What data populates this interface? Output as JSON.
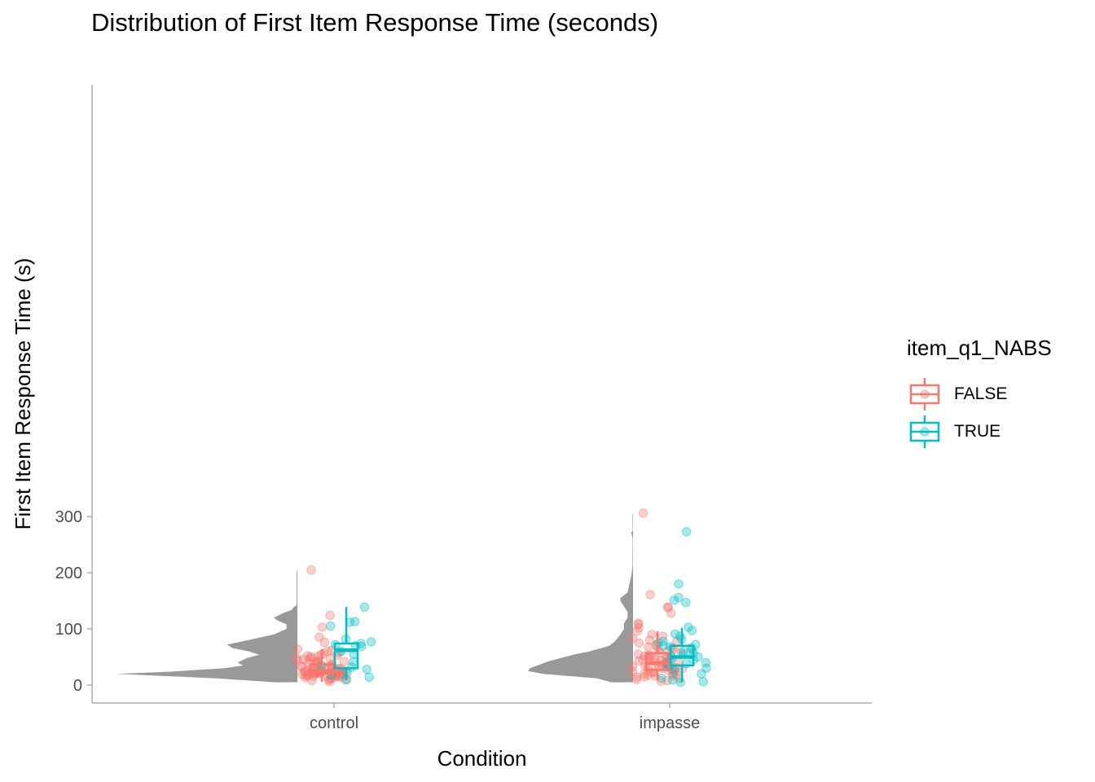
{
  "chart_data": {
    "type": "raincloud",
    "title": "Distribution of First Item Response Time (seconds)",
    "xlabel": "Condition",
    "ylabel": "First Item Response Time (s)",
    "categories": [
      "control",
      "impasse"
    ],
    "ylim": [
      -10,
      322
    ],
    "yticks": [
      0,
      100,
      200,
      300
    ],
    "grid": false,
    "legend": {
      "title": "item_q1_NABS",
      "position": "right",
      "entries": [
        {
          "label": "FALSE",
          "color": "#F8766D"
        },
        {
          "label": "TRUE",
          "color": "#00BFC4"
        }
      ]
    },
    "density_color": "#999999",
    "boxplots": [
      {
        "category": "control",
        "group": "FALSE",
        "whisker_low": 6,
        "q1": 20,
        "median": 25,
        "q3": 37,
        "whisker_high": 64
      },
      {
        "category": "control",
        "group": "TRUE",
        "whisker_low": 9,
        "q1": 30,
        "median": 62,
        "q3": 74,
        "whisker_high": 139
      },
      {
        "category": "impasse",
        "group": "FALSE",
        "whisker_low": 8,
        "q1": 27,
        "median": 39,
        "q3": 57,
        "whisker_high": 96
      },
      {
        "category": "impasse",
        "group": "TRUE",
        "whisker_low": 5,
        "q1": 35,
        "median": 50,
        "q3": 70,
        "whisker_high": 102
      }
    ],
    "densities": [
      {
        "category": "control",
        "y_range": [
          5,
          205
        ],
        "profile": [
          [
            5,
            0.12
          ],
          [
            12,
            0.45
          ],
          [
            17,
            0.8
          ],
          [
            20,
            1.0
          ],
          [
            24,
            0.7
          ],
          [
            30,
            0.4
          ],
          [
            35,
            0.3
          ],
          [
            40,
            0.33
          ],
          [
            48,
            0.28
          ],
          [
            54,
            0.21
          ],
          [
            60,
            0.27
          ],
          [
            66,
            0.36
          ],
          [
            72,
            0.39
          ],
          [
            80,
            0.27
          ],
          [
            90,
            0.13
          ],
          [
            100,
            0.06
          ],
          [
            108,
            0.06
          ],
          [
            115,
            0.11
          ],
          [
            120,
            0.13
          ],
          [
            128,
            0.08
          ],
          [
            134,
            0.03
          ],
          [
            139,
            0.02
          ],
          [
            142,
            0.005
          ],
          [
            150,
            0.004
          ],
          [
            200,
            0.004
          ],
          [
            205,
            0.0
          ]
        ]
      },
      {
        "category": "impasse",
        "y_range": [
          5,
          306
        ],
        "profile": [
          [
            5,
            0.12
          ],
          [
            12,
            0.2
          ],
          [
            20,
            0.5
          ],
          [
            25,
            0.58
          ],
          [
            30,
            0.57
          ],
          [
            36,
            0.52
          ],
          [
            42,
            0.47
          ],
          [
            48,
            0.4
          ],
          [
            54,
            0.33
          ],
          [
            60,
            0.24
          ],
          [
            70,
            0.13
          ],
          [
            78,
            0.1
          ],
          [
            90,
            0.07
          ],
          [
            100,
            0.05
          ],
          [
            110,
            0.05
          ],
          [
            120,
            0.03
          ],
          [
            130,
            0.03
          ],
          [
            140,
            0.05
          ],
          [
            150,
            0.07
          ],
          [
            155,
            0.07
          ],
          [
            165,
            0.03
          ],
          [
            180,
            0.02
          ],
          [
            195,
            0.01
          ],
          [
            210,
            0.003
          ],
          [
            260,
            0.002
          ],
          [
            272,
            0.01
          ],
          [
            274,
            0.002
          ],
          [
            300,
            0.003
          ],
          [
            306,
            0.0
          ]
        ]
      }
    ],
    "points": [
      {
        "category": "control",
        "group": "FALSE",
        "values": [
          6,
          8,
          9,
          10,
          11,
          12,
          13,
          14,
          14,
          15,
          15,
          16,
          16,
          17,
          17,
          18,
          18,
          18,
          19,
          19,
          19,
          20,
          20,
          20,
          21,
          21,
          21,
          22,
          22,
          22,
          23,
          23,
          24,
          24,
          24,
          25,
          25,
          26,
          26,
          27,
          27,
          28,
          28,
          29,
          30,
          30,
          31,
          32,
          33,
          34,
          35,
          36,
          37,
          38,
          39,
          40,
          41,
          42,
          43,
          44,
          45,
          46,
          47,
          48,
          49,
          50,
          51,
          52,
          53,
          54,
          56,
          58,
          60,
          62,
          64,
          76,
          85,
          103,
          124,
          205
        ]
      },
      {
        "category": "control",
        "group": "TRUE",
        "values": [
          9,
          14,
          18,
          22,
          28,
          32,
          35,
          41,
          55,
          60,
          69,
          70,
          72,
          74,
          77,
          82,
          105,
          112,
          113,
          139
        ]
      },
      {
        "category": "impasse",
        "group": "FALSE",
        "values": [
          7,
          8,
          10,
          12,
          14,
          15,
          16,
          17,
          18,
          19,
          20,
          21,
          22,
          23,
          24,
          25,
          26,
          27,
          28,
          29,
          30,
          31,
          32,
          33,
          34,
          35,
          36,
          37,
          38,
          39,
          40,
          41,
          42,
          43,
          44,
          45,
          46,
          47,
          48,
          49,
          50,
          51,
          52,
          53,
          55,
          57,
          58,
          60,
          62,
          64,
          66,
          68,
          70,
          72,
          75,
          78,
          80,
          83,
          87,
          90,
          96,
          102,
          108,
          110,
          128,
          138,
          139,
          161,
          306
        ]
      },
      {
        "category": "impasse",
        "group": "TRUE",
        "values": [
          5,
          6,
          9,
          12,
          20,
          25,
          30,
          32,
          35,
          38,
          40,
          42,
          45,
          48,
          50,
          52,
          55,
          57,
          60,
          63,
          66,
          68,
          70,
          72,
          75,
          78,
          82,
          87,
          91,
          97,
          103,
          147,
          151,
          156,
          180,
          273
        ]
      }
    ]
  }
}
